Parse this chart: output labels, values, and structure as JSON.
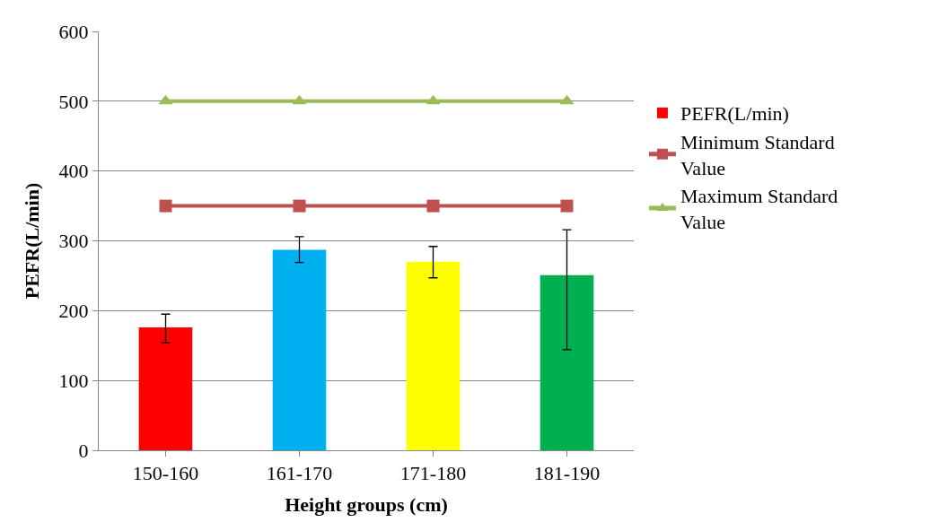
{
  "chart_data": {
    "type": "bar",
    "xlabel": "Height groups (cm)",
    "ylabel": "PEFR(L/min)",
    "categories": [
      "150-160",
      "161-170",
      "171-180",
      "181-190"
    ],
    "series": [
      {
        "name": "PEFR(L/min)",
        "colors": [
          "#ff0000",
          "#00b0f0",
          "#ffff00",
          "#00b050"
        ],
        "values": [
          176,
          287,
          270,
          251
        ],
        "errors": [
          [
            154,
            195
          ],
          [
            269,
            306
          ],
          [
            247,
            292
          ],
          [
            144,
            316
          ]
        ]
      },
      {
        "name": "Minimum Standard Value",
        "type": "line",
        "color": "#c0504d",
        "marker": "square",
        "values": [
          350,
          350,
          350,
          350
        ]
      },
      {
        "name": "Maximum Standard Value",
        "type": "line",
        "color": "#9bbb59",
        "marker": "triangle",
        "values": [
          500,
          500,
          500,
          500
        ]
      }
    ],
    "ylim": [
      0,
      600
    ],
    "yticks": [
      0,
      100,
      200,
      300,
      400,
      500,
      600
    ],
    "grid": "y",
    "legend": "right"
  }
}
